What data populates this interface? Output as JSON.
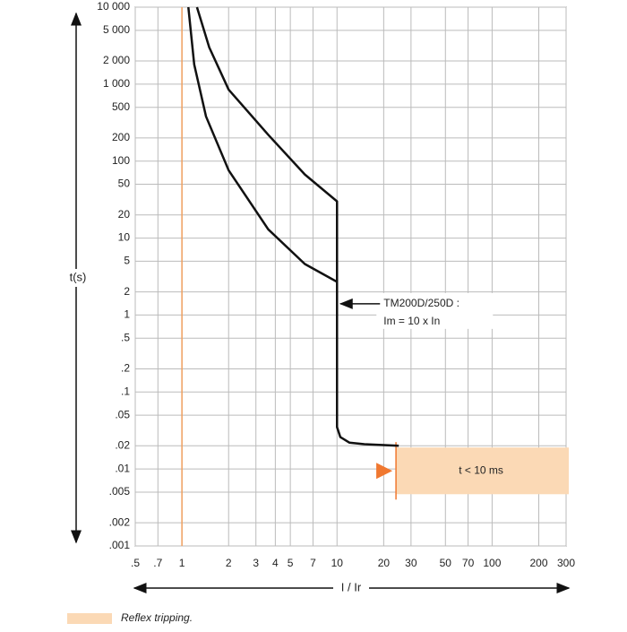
{
  "chart_data": {
    "type": "line",
    "x_label": "I / Ir",
    "y_label": "t(s)",
    "log_x": true,
    "log_y": true,
    "grid": true,
    "xlim": [
      0.5,
      300
    ],
    "ylim": [
      0.001,
      10000
    ],
    "xticks": [
      {
        "value": 0.5,
        "label": ".5"
      },
      {
        "value": 0.7,
        "label": ".7"
      },
      1,
      2,
      3,
      4,
      5,
      7,
      10,
      20,
      30,
      50,
      70,
      100,
      200,
      300
    ],
    "yticks": [
      {
        "value": 10000,
        "label": "10 000"
      },
      {
        "value": 5000,
        "label": "5 000"
      },
      {
        "value": 2000,
        "label": "2 000"
      },
      {
        "value": 1000,
        "label": "1 000"
      },
      500,
      200,
      100,
      50,
      20,
      10,
      5,
      2,
      1,
      {
        "value": 0.5,
        "label": ".5"
      },
      {
        "value": 0.2,
        "label": ".2"
      },
      {
        "value": 0.1,
        "label": ".1"
      },
      {
        "value": 0.05,
        "label": ".05"
      },
      {
        "value": 0.02,
        "label": ".02"
      },
      {
        "value": 0.01,
        "label": ".01"
      },
      {
        "value": 0.005,
        "label": ".005"
      },
      {
        "value": 0.002,
        "label": ".002"
      },
      {
        "value": 0.001,
        "label": ".001"
      }
    ],
    "series": [
      {
        "color": "#111111",
        "x": [
          1.25,
          1.5,
          2,
          3.6,
          6.2,
          10,
          10
        ],
        "values": [
          10000,
          3000,
          850,
          220,
          67,
          30,
          2.7
        ]
      },
      {
        "color": "#111111",
        "x": [
          1.1,
          1.2,
          1.43,
          2,
          3.6,
          6.2,
          10,
          10,
          10.5,
          12,
          15,
          25
        ],
        "values": [
          10000,
          1800,
          380,
          76,
          13,
          4.6,
          2.7,
          0.035,
          0.026,
          0.022,
          0.021,
          0.02
        ]
      }
    ],
    "reference_line": {
      "x": 1,
      "color": "#f0a060"
    },
    "reflex_zone": {
      "xlim": [
        24,
        300
      ],
      "ylim": [
        0.0047,
        0.019
      ],
      "color": "#fbd9b5",
      "edge_color": "#f07830",
      "label": "t < 10 ms"
    },
    "annotation": {
      "lines": [
        "TM200D/250D :",
        "Im = 10 x In"
      ],
      "x": 10,
      "y": 1.4
    },
    "legend": {
      "label": "Reflex tripping."
    }
  }
}
